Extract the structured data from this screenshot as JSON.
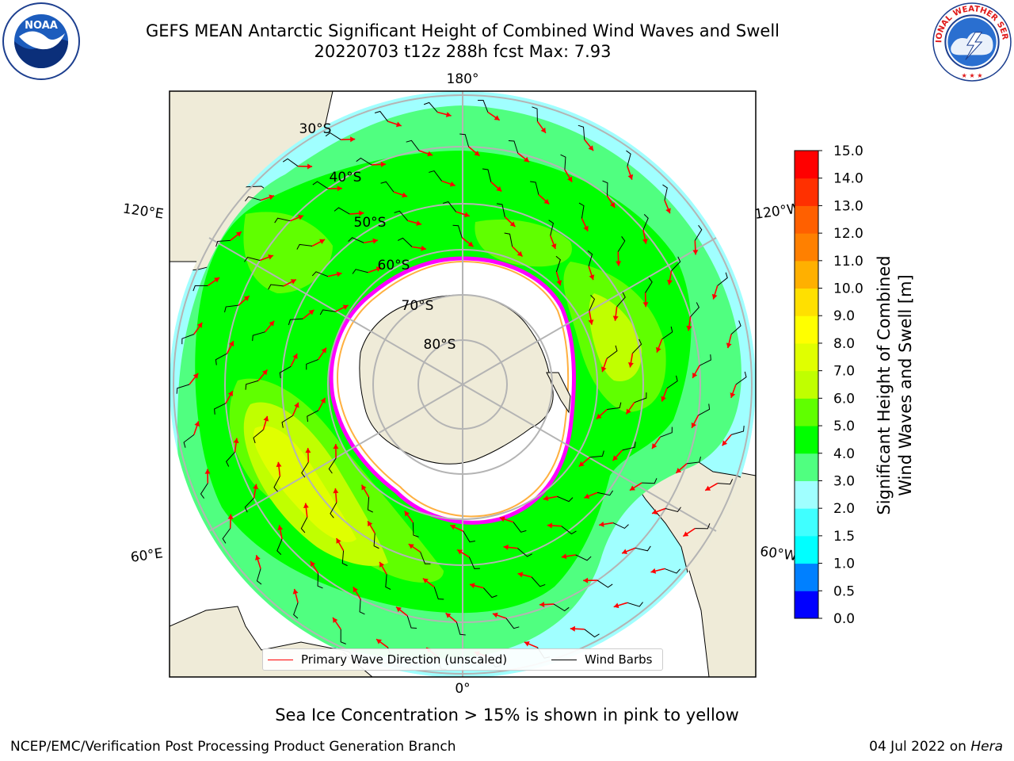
{
  "title": {
    "line1": "GEFS MEAN Antarctic Significant Height of Combined Wind Waves and Swell",
    "line2": "20220703 t12z 288h fcst   Max: 7.93"
  },
  "logos": {
    "left": {
      "name": "noaa-logo",
      "text": "NOAA",
      "ring_text": "NATIONAL OCEANIC AND ATMOSPHERIC ADMINISTRATION · U.S. DEPARTMENT OF COMMERCE"
    },
    "right": {
      "name": "nws-logo",
      "ring_text": "NATIONAL WEATHER SERVICE"
    }
  },
  "map": {
    "projection": "south-polar-stereographic",
    "longitude_labels": {
      "top": "180°",
      "bottom": "0°",
      "upper_left": "120°E",
      "upper_right": "120°W",
      "lower_left": "60°E",
      "lower_right": "60°W"
    },
    "latitude_labels": [
      "30°S",
      "40°S",
      "50°S",
      "60°S",
      "70°S",
      "80°S"
    ],
    "colors": {
      "land": "#efebd8",
      "ocean_outside": "#ffffff",
      "ice_free": "#ffffff",
      "sea_ice_edge": "#ff00ff",
      "grid": "#b4b4b4",
      "wave_arrow": "#ff0000",
      "barb": "#000000"
    },
    "wave_height_zones": [
      "3.0-4.0 m",
      "4.0-5.0 m",
      "5.0-6.0 m",
      "6.0-7.0 m",
      "7.0-8.0 m"
    ]
  },
  "colorbar": {
    "label_line1": "Significant Height of Combined",
    "label_line2": "Wind Waves and Swell [m]",
    "ticks": [
      "0.0",
      "0.5",
      "1.0",
      "1.5",
      "2.0",
      "3.0",
      "4.0",
      "5.0",
      "6.0",
      "7.0",
      "8.0",
      "9.0",
      "10.0",
      "11.0",
      "12.0",
      "13.0",
      "14.0",
      "15.0"
    ],
    "colors": [
      "#0000ff",
      "#0080ff",
      "#00ffff",
      "#40ffff",
      "#a0ffff",
      "#50ff80",
      "#00ff00",
      "#60ff00",
      "#c0ff00",
      "#e0ff00",
      "#ffff00",
      "#ffe000",
      "#ffb000",
      "#ff8000",
      "#ff6000",
      "#ff3000",
      "#ff0000"
    ]
  },
  "legend": {
    "wave_label": "Primary Wave Direction (unscaled)",
    "barb_label": "Wind Barbs"
  },
  "subtitle": "Sea Ice Concentration > 15% is shown in pink to yellow",
  "footer": {
    "left": "NCEP/EMC/Verification Post Processing Product Generation Branch",
    "right_date": "04 Jul 2022 on ",
    "right_host": "Hera"
  }
}
